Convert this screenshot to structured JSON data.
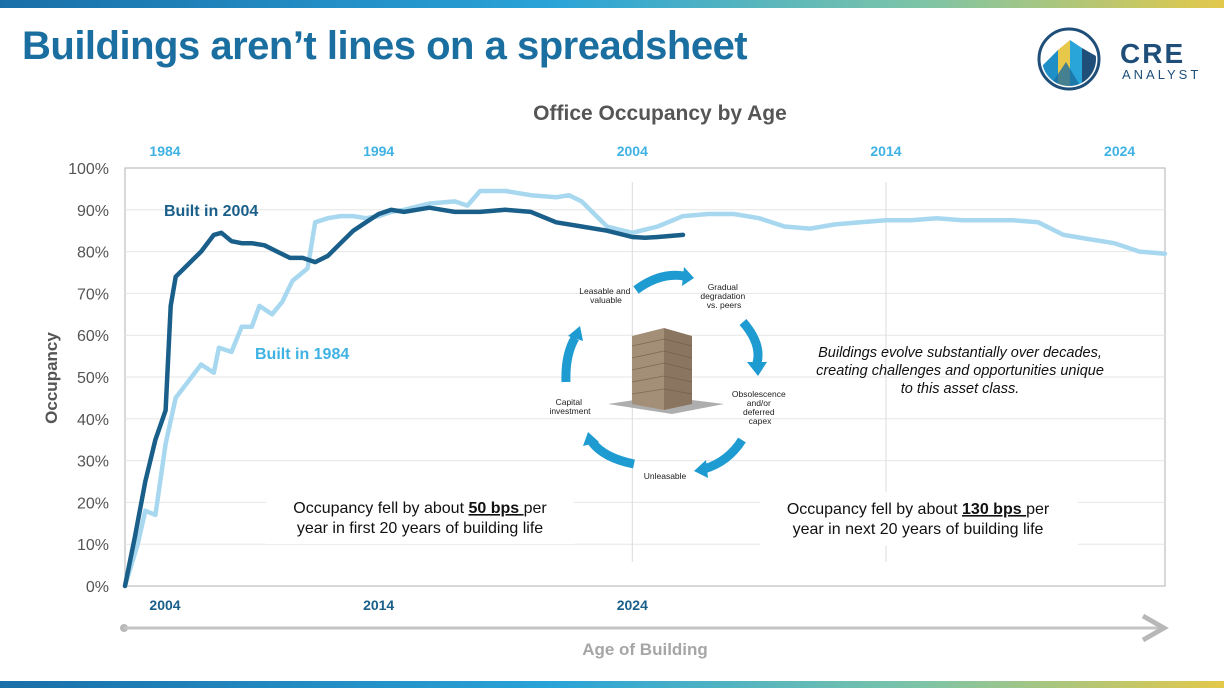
{
  "headline": "Buildings aren’t lines on a spreadsheet",
  "logo": {
    "line1": "CRE",
    "line2": "ANALYST"
  },
  "colors": {
    "dark_series": "#1a5f8a",
    "light_series": "#a8d8ef",
    "accent": "#29a3d8",
    "title": "#1a6ea0"
  },
  "chart_data": {
    "type": "line",
    "title": "Office Occupancy by Age",
    "ylabel": "Occupancy",
    "xlabel": "Age of Building",
    "ylim": [
      0,
      100
    ],
    "yticks": [
      "0%",
      "10%",
      "20%",
      "30%",
      "40%",
      "50%",
      "60%",
      "70%",
      "80%",
      "90%",
      "100%"
    ],
    "top_axis_labels": [
      "1984",
      "1994",
      "2004",
      "2014",
      "2024"
    ],
    "bottom_axis_labels": [
      "2004",
      "2014",
      "2024"
    ],
    "xlim_age_years": [
      0,
      41
    ],
    "series": [
      {
        "name": "Built in 2004",
        "x_age_years": [
          0,
          0.4,
          0.8,
          1.2,
          1.6,
          1.8,
          2.0,
          2.5,
          3,
          3.5,
          3.8,
          4.2,
          4.6,
          5,
          5.5,
          6,
          6.5,
          7,
          7.5,
          8,
          8.5,
          9,
          9.5,
          10,
          10.5,
          11,
          11.5,
          12,
          12.5,
          13,
          14,
          15,
          16,
          17,
          18,
          19,
          20,
          20.5,
          21,
          22
        ],
        "values": [
          0,
          12,
          25,
          35,
          42,
          67,
          74,
          77,
          80,
          84,
          84.5,
          82.5,
          82,
          82,
          81.5,
          80,
          78.5,
          78.5,
          77.5,
          79,
          82,
          85,
          87,
          89,
          90,
          89.5,
          90,
          90.5,
          90,
          89.5,
          89.5,
          90,
          89.5,
          87,
          86,
          85,
          83.5,
          83.3,
          83.5,
          84
        ]
      },
      {
        "name": "Built in 1984",
        "x_age_years": [
          0,
          0.5,
          0.8,
          1.2,
          1.6,
          2.0,
          2.5,
          3,
          3.5,
          3.7,
          4.2,
          4.6,
          5,
          5.3,
          5.8,
          6.2,
          6.6,
          7.0,
          7.2,
          7.5,
          8.0,
          8.5,
          9,
          9.5,
          10,
          10.5,
          11,
          12,
          13,
          13.5,
          14,
          15,
          16,
          17,
          17.5,
          18,
          19,
          20,
          21,
          22,
          23,
          24,
          25,
          26,
          27,
          28,
          29,
          30,
          31,
          32,
          33,
          34,
          35,
          36,
          37,
          38,
          39,
          40,
          41
        ],
        "values": [
          0,
          10,
          18,
          17,
          34,
          45,
          49,
          53,
          51,
          57,
          56,
          62,
          62,
          67,
          65,
          68,
          73,
          75,
          76,
          87,
          88,
          88.5,
          88.5,
          88,
          88.5,
          89.5,
          90,
          91.5,
          92,
          91,
          94.5,
          94.5,
          93.5,
          93,
          93.5,
          92,
          86,
          84.5,
          86,
          88.5,
          89,
          89,
          88,
          86,
          85.5,
          86.5,
          87,
          87.5,
          87.5,
          88,
          87.5,
          87.5,
          87.5,
          87,
          84,
          83,
          82,
          80,
          79.5
        ]
      }
    ],
    "annotations": {
      "label_2004": "Built in 2004",
      "label_1984": "Built in 1984",
      "note_right": "Buildings evolve substantially over decades, creating challenges and opportunities unique to this asset class.",
      "left_box": {
        "pre": "Occupancy fell by about ",
        "bold": "50 bps ",
        "post": "per",
        "line2": "year in first 20 years of building life"
      },
      "right_box": {
        "pre": "Occupancy fell by about ",
        "bold": "130 bps ",
        "post": "per",
        "line2": "year in next 20 years of building life"
      },
      "cycle": {
        "leasable": [
          "Leasable and",
          "valuable"
        ],
        "gradual": [
          "Gradual",
          "degradation",
          "vs. peers"
        ],
        "obsolescence": [
          "Obsolescence",
          "and/or",
          "deferred",
          "capex"
        ],
        "unleasable": [
          "Unleasable"
        ],
        "capital": [
          "Capital",
          "investment"
        ]
      }
    }
  }
}
